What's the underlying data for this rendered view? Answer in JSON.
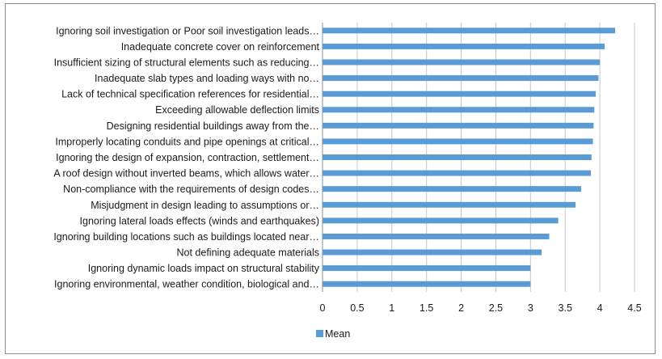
{
  "chart_data": {
    "type": "bar",
    "orientation": "horizontal",
    "title": "",
    "xlabel": "",
    "ylabel": "",
    "xlim": [
      0,
      4.5
    ],
    "xticks": [
      "0",
      "0.5",
      "1",
      "1.5",
      "2",
      "2.5",
      "3",
      "3.5",
      "4",
      "4.5"
    ],
    "grid": "vertical",
    "legend_position": "bottom",
    "bar_color": "#5B9BD5",
    "categories": [
      "Ignoring soil investigation or Poor soil investigation leads…",
      "Inadequate concrete cover on reinforcement",
      "Insufficient sizing of structural elements such as reducing…",
      "Inadequate slab types and loading ways with no…",
      "Lack of technical specification references for residential…",
      "Exceeding allowable deflection limits",
      "Designing residential buildings away from the…",
      "Improperly locating conduits and pipe openings at critical…",
      "Ignoring the design of expansion, contraction, settlement…",
      "A roof design without inverted beams, which allows water…",
      "Non-compliance with the requirements of design codes…",
      "Misjudgment in design leading to assumptions or…",
      "Ignoring lateral loads effects (winds and earthquakes)",
      "Ignoring building locations such as buildings located near…",
      "Not defining adequate materials",
      "Ignoring dynamic loads impact on structural stability",
      "Ignoring environmental, weather condition, biological and…"
    ],
    "series": [
      {
        "name": "Mean",
        "values": [
          4.22,
          4.07,
          4.0,
          3.98,
          3.94,
          3.92,
          3.91,
          3.9,
          3.88,
          3.87,
          3.73,
          3.65,
          3.4,
          3.27,
          3.16,
          3.0,
          3.0
        ]
      }
    ]
  }
}
